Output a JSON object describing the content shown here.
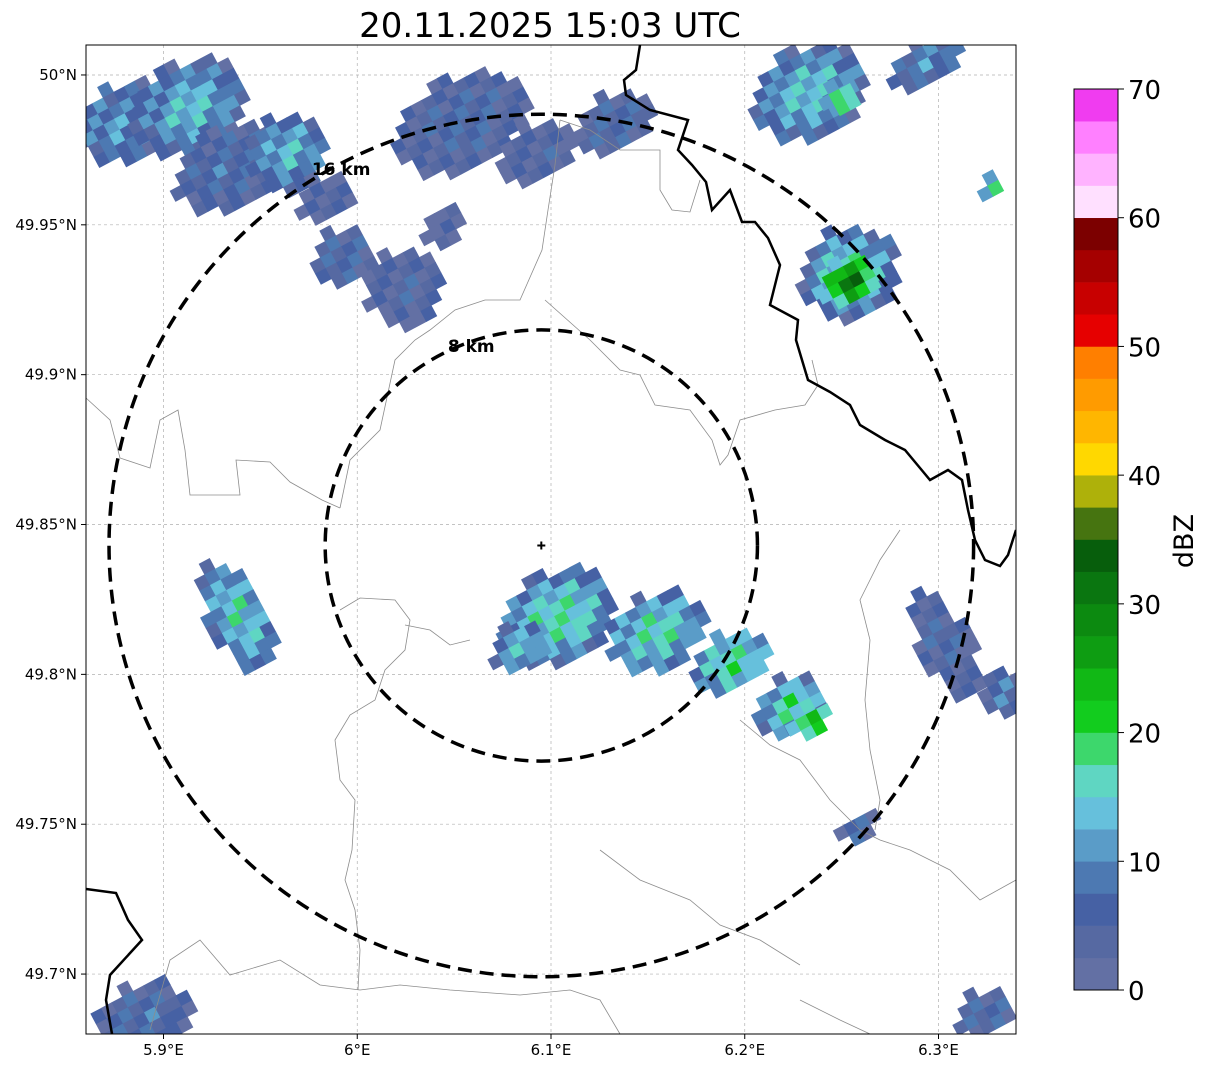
{
  "title": "20.11.2025 15:03 UTC",
  "map": {
    "lon_range": [
      5.86,
      6.34
    ],
    "lat_range": [
      49.68,
      50.01
    ],
    "lon_ticks": [
      {
        "value": 5.9,
        "label": "5.9°E"
      },
      {
        "value": 6.0,
        "label": "6°E"
      },
      {
        "value": 6.1,
        "label": "6.1°E"
      },
      {
        "value": 6.2,
        "label": "6.2°E"
      },
      {
        "value": 6.3,
        "label": "6.3°E"
      }
    ],
    "lat_ticks": [
      {
        "value": 50.0,
        "label": "50°N"
      },
      {
        "value": 49.95,
        "label": "49.95°N"
      },
      {
        "value": 49.9,
        "label": "49.9°N"
      },
      {
        "value": 49.85,
        "label": "49.85°N"
      },
      {
        "value": 49.8,
        "label": "49.8°N"
      },
      {
        "value": 49.75,
        "label": "49.75°N"
      },
      {
        "value": 49.7,
        "label": "49.7°N"
      }
    ],
    "grid": true,
    "radar_site": {
      "lon": 6.095,
      "lat": 49.843
    },
    "range_rings": [
      {
        "radius_km": 8,
        "label": "8 km"
      },
      {
        "radius_km": 16,
        "label": "16 km"
      }
    ]
  },
  "colorbar": {
    "label": "dBZ",
    "min": 0,
    "max": 70,
    "tick_labels": [
      "0",
      "10",
      "20",
      "30",
      "40",
      "50",
      "60",
      "70"
    ],
    "ticks": [
      0,
      10,
      20,
      30,
      40,
      50,
      60,
      70
    ],
    "colors": [
      "#6370a4",
      "#5669a2",
      "#4661a4",
      "#4d79b2",
      "#5a9cc8",
      "#66c0dc",
      "#5fd6c2",
      "#3dd76c",
      "#12cc1e",
      "#11b815",
      "#0e9d12",
      "#0c8a10",
      "#0a7610",
      "#075e0c",
      "#467410",
      "#aeb10a",
      "#ffd800",
      "#ffb600",
      "#ff9b00",
      "#ff7f00",
      "#e60000",
      "#c80000",
      "#a50000",
      "#7c0000",
      "#ffe0ff",
      "#ffb3ff",
      "#ff80ff",
      "#f03cf0"
    ]
  },
  "reflectivity_cells": [
    {
      "lon": 5.875,
      "lat": 49.985,
      "w": 0.05,
      "h": 0.025,
      "dbz": 8
    },
    {
      "lon": 5.91,
      "lat": 49.99,
      "w": 0.06,
      "h": 0.03,
      "dbz": 12
    },
    {
      "lon": 5.93,
      "lat": 49.97,
      "w": 0.06,
      "h": 0.025,
      "dbz": 6
    },
    {
      "lon": 5.96,
      "lat": 49.975,
      "w": 0.04,
      "h": 0.025,
      "dbz": 10
    },
    {
      "lon": 5.98,
      "lat": 49.96,
      "w": 0.03,
      "h": 0.015,
      "dbz": 4
    },
    {
      "lon": 5.99,
      "lat": 49.94,
      "w": 0.03,
      "h": 0.02,
      "dbz": 5
    },
    {
      "lon": 6.02,
      "lat": 49.93,
      "w": 0.04,
      "h": 0.025,
      "dbz": 4
    },
    {
      "lon": 6.04,
      "lat": 49.95,
      "w": 0.02,
      "h": 0.015,
      "dbz": 3
    },
    {
      "lon": 6.05,
      "lat": 49.985,
      "w": 0.07,
      "h": 0.03,
      "dbz": 5
    },
    {
      "lon": 6.09,
      "lat": 49.975,
      "w": 0.04,
      "h": 0.02,
      "dbz": 4
    },
    {
      "lon": 6.13,
      "lat": 49.985,
      "w": 0.04,
      "h": 0.02,
      "dbz": 6
    },
    {
      "lon": 6.23,
      "lat": 49.995,
      "w": 0.06,
      "h": 0.03,
      "dbz": 13
    },
    {
      "lon": 6.245,
      "lat": 49.993,
      "w": 0.015,
      "h": 0.01,
      "dbz": 20
    },
    {
      "lon": 6.29,
      "lat": 50.005,
      "w": 0.04,
      "h": 0.015,
      "dbz": 8
    },
    {
      "lon": 6.25,
      "lat": 49.935,
      "w": 0.05,
      "h": 0.03,
      "dbz": 14
    },
    {
      "lon": 6.25,
      "lat": 49.932,
      "w": 0.03,
      "h": 0.015,
      "dbz": 26
    },
    {
      "lon": 6.325,
      "lat": 49.963,
      "w": 0.012,
      "h": 0.008,
      "dbz": 18
    },
    {
      "lon": 5.935,
      "lat": 49.82,
      "w": 0.03,
      "h": 0.04,
      "dbz": 12
    },
    {
      "lon": 6.1,
      "lat": 49.82,
      "w": 0.06,
      "h": 0.03,
      "dbz": 15
    },
    {
      "lon": 6.08,
      "lat": 49.81,
      "w": 0.03,
      "h": 0.015,
      "dbz": 11
    },
    {
      "lon": 6.15,
      "lat": 49.815,
      "w": 0.05,
      "h": 0.025,
      "dbz": 13
    },
    {
      "lon": 6.19,
      "lat": 49.805,
      "w": 0.04,
      "h": 0.02,
      "dbz": 14
    },
    {
      "lon": 6.22,
      "lat": 49.79,
      "w": 0.035,
      "h": 0.02,
      "dbz": 16
    },
    {
      "lon": 6.23,
      "lat": 49.785,
      "w": 0.02,
      "h": 0.01,
      "dbz": 20
    },
    {
      "lon": 6.3,
      "lat": 49.81,
      "w": 0.025,
      "h": 0.04,
      "dbz": 5
    },
    {
      "lon": 6.33,
      "lat": 49.795,
      "w": 0.02,
      "h": 0.02,
      "dbz": 6
    },
    {
      "lon": 6.255,
      "lat": 49.75,
      "w": 0.02,
      "h": 0.01,
      "dbz": 5
    },
    {
      "lon": 5.885,
      "lat": 49.685,
      "w": 0.05,
      "h": 0.025,
      "dbz": 7
    },
    {
      "lon": 6.32,
      "lat": 49.688,
      "w": 0.03,
      "h": 0.015,
      "dbz": 4
    }
  ]
}
